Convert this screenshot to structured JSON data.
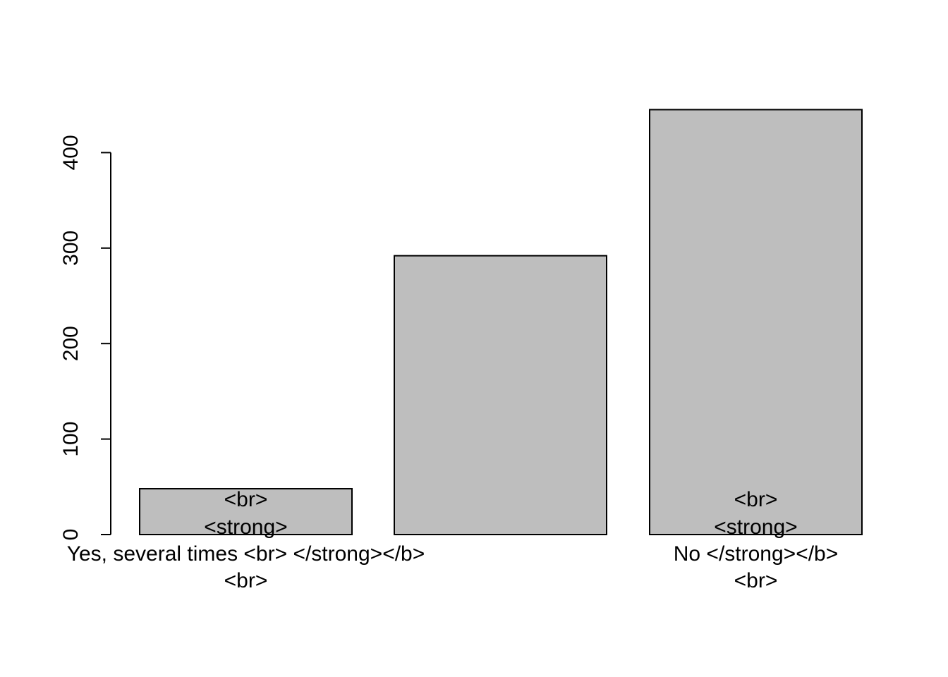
{
  "chart_data": {
    "type": "bar",
    "categories": [
      [
        "<br>",
        "<strong>",
        "Yes, several times <br> </strong></b>",
        "<br>"
      ],
      [
        "",
        "",
        "",
        ""
      ],
      [
        "<br>",
        "<strong>",
        "No  </strong></b>",
        "<br>"
      ]
    ],
    "values": [
      48,
      292,
      445
    ],
    "ylim": [
      0,
      445
    ],
    "yticks": [
      "0",
      "100",
      "200",
      "300",
      "400"
    ],
    "bar_color": "#bebebe",
    "title": "",
    "xlabel": "",
    "ylabel": "",
    "grid": false
  }
}
